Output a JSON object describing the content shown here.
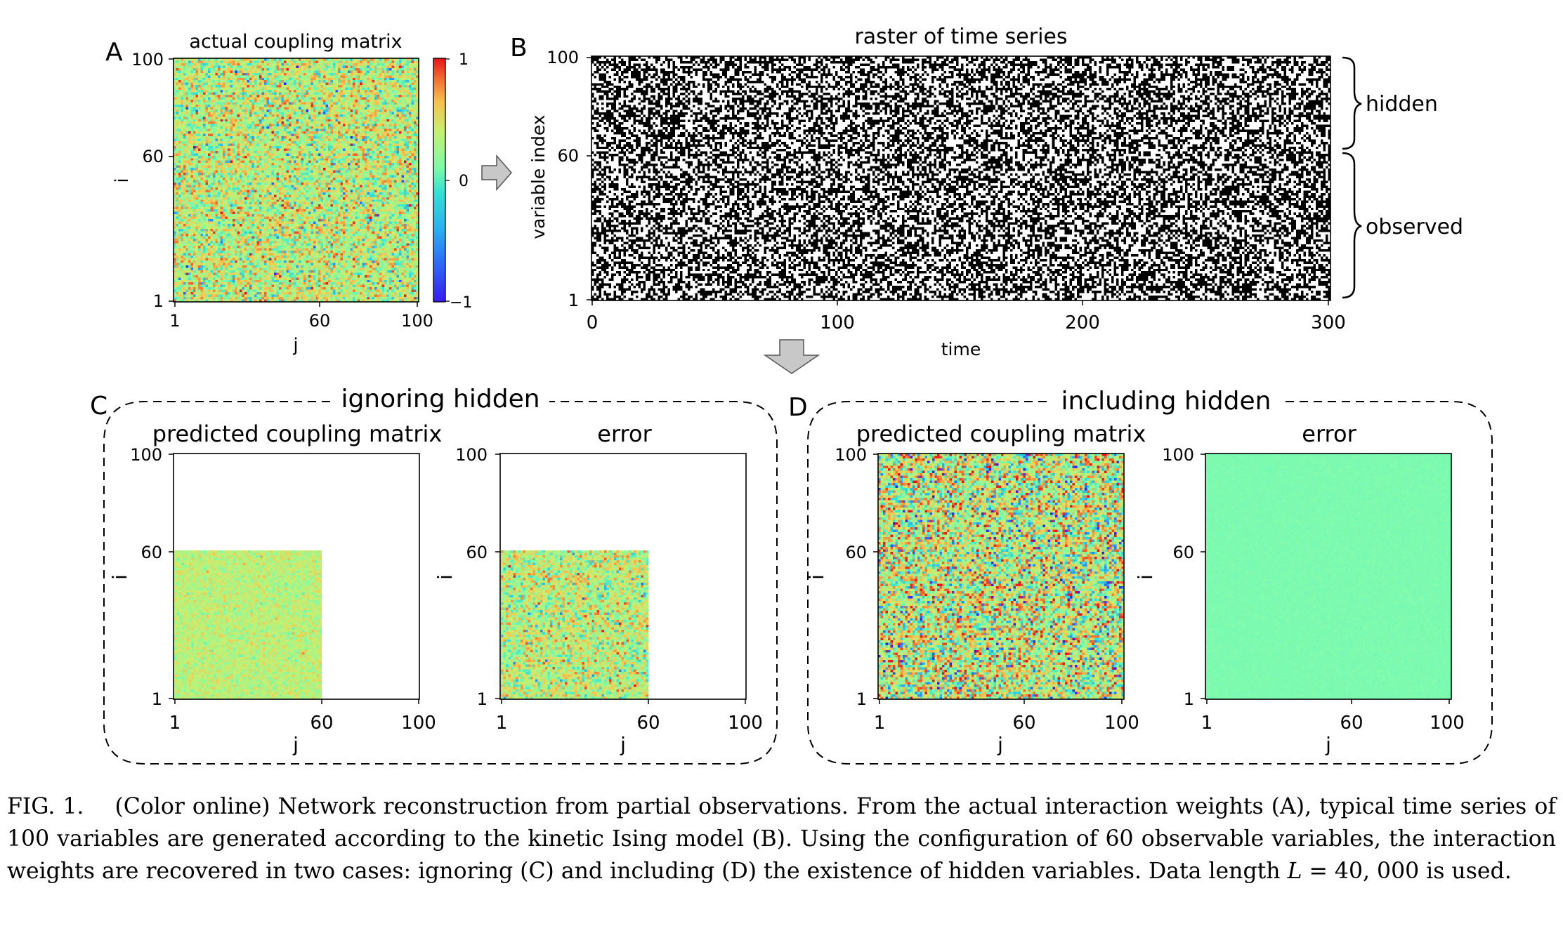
{
  "panels": {
    "A": {
      "letter": "A",
      "title": "actual coupling matrix",
      "xlabel": "j",
      "ylabel": "i",
      "xticks": [
        "1",
        "60",
        "100"
      ],
      "yticks": [
        "100",
        "60",
        "1"
      ],
      "colorbar_ticks": [
        "1",
        "0",
        "−1"
      ]
    },
    "B": {
      "letter": "B",
      "title": "raster of time series",
      "xlabel": "time",
      "ylabel": "variable index",
      "xticks": [
        "0",
        "100",
        "200",
        "300"
      ],
      "yticks": [
        "100",
        "60",
        "1"
      ],
      "brace_hidden": "hidden",
      "brace_observed": "observed"
    },
    "C": {
      "letter": "C",
      "group_title": "ignoring hidden",
      "left_title": "predicted coupling matrix",
      "right_title": "error",
      "xlabel": "j",
      "ylabel": "i",
      "xticks": [
        "1",
        "60",
        "100"
      ],
      "yticks": [
        "100",
        "60",
        "1"
      ]
    },
    "D": {
      "letter": "D",
      "group_title": "including hidden",
      "left_title": "predicted coupling matrix",
      "right_title": "error",
      "xlabel": "j",
      "ylabel": "i",
      "xticks": [
        "1",
        "60",
        "100"
      ],
      "yticks": [
        "100",
        "60",
        "1"
      ]
    }
  },
  "caption": {
    "label": "FIG. 1.",
    "text_1": "(Color online) Network reconstruction from partial observations. From the actual interaction weights (A), typical time series of 100 variables are generated according to the kinetic Ising model (B). Using the configuration of 60 observable variables, the interaction weights are recovered in two cases: ignoring (C) and including (D) the existence of hidden variables. Data length ",
    "math": "L",
    "text_2": " = 40, 000 is used."
  },
  "colors": {
    "colormap": [
      "#3a1cf0",
      "#2d8ef5",
      "#35e0d4",
      "#7dfaa8",
      "#c6f070",
      "#f8c24e",
      "#f06a2e",
      "#e8141a"
    ],
    "background_value": "#7dfab0",
    "raster_on": "#000000",
    "raster_off": "#ffffff",
    "arrow_fill": "#c8c8c8"
  }
}
